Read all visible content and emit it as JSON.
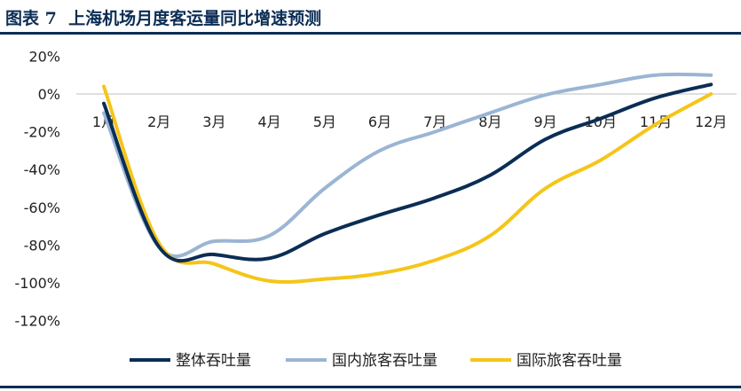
{
  "header": {
    "title": "图表 7  上海机场月度客运量同比增速预测"
  },
  "colors": {
    "title": "#0b2d55",
    "rule": "#0b2d55",
    "axis": "#bfbfbf"
  },
  "chart_data": {
    "type": "line",
    "title": "",
    "xlabel": "",
    "ylabel": "",
    "categories": [
      "1月",
      "2月",
      "3月",
      "4月",
      "5月",
      "6月",
      "7月",
      "8月",
      "9月",
      "10月",
      "11月",
      "12月"
    ],
    "y_ticks": [
      "20%",
      "0%",
      "-20%",
      "-40%",
      "-60%",
      "-80%",
      "-100%",
      "-120%"
    ],
    "ylim": [
      -120,
      20
    ],
    "grid": false,
    "legend_position": "bottom",
    "series": [
      {
        "name": "整体吞吐量",
        "color": "#0b2d55",
        "values": [
          -5,
          -81,
          -85,
          -87,
          -74,
          -64,
          -55,
          -43,
          -24,
          -13,
          -2,
          5
        ]
      },
      {
        "name": "国内旅客吞吐量",
        "color": "#9bb5d3",
        "values": [
          -10,
          -81,
          -78,
          -75,
          -50,
          -30,
          -20,
          -10,
          -0.5,
          5,
          10,
          10
        ]
      },
      {
        "name": "国际旅客吞吐量",
        "color": "#f5c518",
        "values": [
          4,
          -79,
          -90,
          -99,
          -98,
          -95,
          -88,
          -75,
          -50,
          -35,
          -16,
          0
        ]
      }
    ]
  }
}
